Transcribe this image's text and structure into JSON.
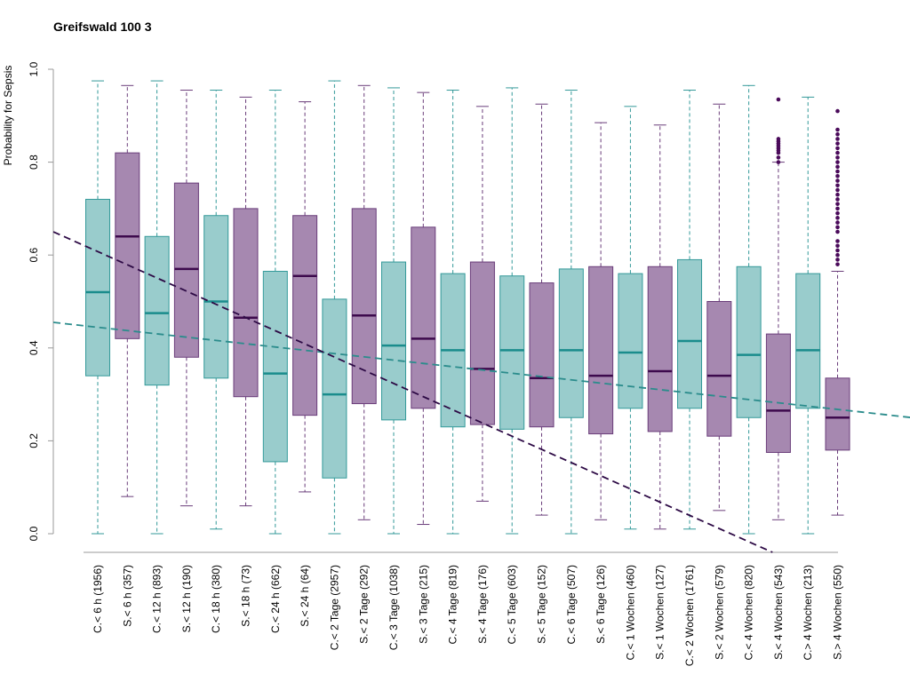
{
  "chart_data": {
    "type": "box",
    "title": "Greifswald 100 3",
    "ylabel": "Probability for Sepsis",
    "xlabel": "",
    "ylim": [
      0,
      1
    ],
    "yticks": [
      "0.0",
      "0.2",
      "0.4",
      "0.6",
      "0.8",
      "1.0"
    ],
    "yticks_values": [
      0,
      0.2,
      0.4,
      0.6,
      0.8,
      1.0
    ],
    "grid": false,
    "colors": {
      "C": {
        "fill": "#99cccc",
        "stroke": "#339999",
        "median": "#1a8c8c"
      },
      "S": {
        "fill": "#a688b0",
        "stroke": "#6a3d7a",
        "median": "#3d0a4d"
      },
      "trend_C": "#2b8c8c",
      "trend_S": "#2d0a45",
      "outlier": "#4a0a5a"
    },
    "categories": [
      "C.< 6 h (1956)",
      "S.< 6 h (357)",
      "C.< 12 h (893)",
      "S.< 12 h (190)",
      "C.< 18 h (380)",
      "S.< 18 h (73)",
      "C.< 24 h (662)",
      "S.< 24 h (64)",
      "C.< 2 Tage (2957)",
      "S.< 2 Tage (292)",
      "C.< 3 Tage (1038)",
      "S.< 3 Tage (215)",
      "C.< 4 Tage (819)",
      "S.< 4 Tage (176)",
      "C.< 5 Tage (603)",
      "S.< 5 Tage (152)",
      "C.< 6 Tage (507)",
      "S.< 6 Tage (126)",
      "C.< 1 Wochen (460)",
      "S.< 1 Wochen (127)",
      "C.< 2 Wochen (1761)",
      "S.< 2 Wochen (579)",
      "C.< 4 Wochen (820)",
      "S.< 4 Wochen (543)",
      "C.> 4 Wochen (213)",
      "S.> 4 Wochen (550)"
    ],
    "boxes": [
      {
        "group": "C",
        "whisker_low": 0.0,
        "q1": 0.34,
        "median": 0.52,
        "q3": 0.72,
        "whisker_high": 0.975
      },
      {
        "group": "S",
        "whisker_low": 0.08,
        "q1": 0.42,
        "median": 0.64,
        "q3": 0.82,
        "whisker_high": 0.965
      },
      {
        "group": "C",
        "whisker_low": 0.0,
        "q1": 0.32,
        "median": 0.475,
        "q3": 0.64,
        "whisker_high": 0.975
      },
      {
        "group": "S",
        "whisker_low": 0.06,
        "q1": 0.38,
        "median": 0.57,
        "q3": 0.755,
        "whisker_high": 0.955
      },
      {
        "group": "C",
        "whisker_low": 0.01,
        "q1": 0.335,
        "median": 0.5,
        "q3": 0.685,
        "whisker_high": 0.955
      },
      {
        "group": "S",
        "whisker_low": 0.06,
        "q1": 0.295,
        "median": 0.465,
        "q3": 0.7,
        "whisker_high": 0.94
      },
      {
        "group": "C",
        "whisker_low": 0.0,
        "q1": 0.155,
        "median": 0.345,
        "q3": 0.565,
        "whisker_high": 0.955
      },
      {
        "group": "S",
        "whisker_low": 0.09,
        "q1": 0.255,
        "median": 0.555,
        "q3": 0.685,
        "whisker_high": 0.93
      },
      {
        "group": "C",
        "whisker_low": 0.0,
        "q1": 0.12,
        "median": 0.3,
        "q3": 0.505,
        "whisker_high": 0.975
      },
      {
        "group": "S",
        "whisker_low": 0.03,
        "q1": 0.28,
        "median": 0.47,
        "q3": 0.7,
        "whisker_high": 0.965
      },
      {
        "group": "C",
        "whisker_low": 0.0,
        "q1": 0.245,
        "median": 0.405,
        "q3": 0.585,
        "whisker_high": 0.96
      },
      {
        "group": "S",
        "whisker_low": 0.02,
        "q1": 0.27,
        "median": 0.42,
        "q3": 0.66,
        "whisker_high": 0.95
      },
      {
        "group": "C",
        "whisker_low": 0.0,
        "q1": 0.23,
        "median": 0.395,
        "q3": 0.56,
        "whisker_high": 0.955
      },
      {
        "group": "S",
        "whisker_low": 0.07,
        "q1": 0.235,
        "median": 0.355,
        "q3": 0.585,
        "whisker_high": 0.92
      },
      {
        "group": "C",
        "whisker_low": 0.0,
        "q1": 0.225,
        "median": 0.395,
        "q3": 0.555,
        "whisker_high": 0.96
      },
      {
        "group": "S",
        "whisker_low": 0.04,
        "q1": 0.23,
        "median": 0.335,
        "q3": 0.54,
        "whisker_high": 0.925
      },
      {
        "group": "C",
        "whisker_low": 0.0,
        "q1": 0.25,
        "median": 0.395,
        "q3": 0.57,
        "whisker_high": 0.955
      },
      {
        "group": "S",
        "whisker_low": 0.03,
        "q1": 0.215,
        "median": 0.34,
        "q3": 0.575,
        "whisker_high": 0.885
      },
      {
        "group": "C",
        "whisker_low": 0.01,
        "q1": 0.27,
        "median": 0.39,
        "q3": 0.56,
        "whisker_high": 0.92
      },
      {
        "group": "S",
        "whisker_low": 0.01,
        "q1": 0.22,
        "median": 0.35,
        "q3": 0.575,
        "whisker_high": 0.88
      },
      {
        "group": "C",
        "whisker_low": 0.01,
        "q1": 0.27,
        "median": 0.415,
        "q3": 0.59,
        "whisker_high": 0.955
      },
      {
        "group": "S",
        "whisker_low": 0.05,
        "q1": 0.21,
        "median": 0.34,
        "q3": 0.5,
        "whisker_high": 0.925
      },
      {
        "group": "C",
        "whisker_low": 0.0,
        "q1": 0.25,
        "median": 0.385,
        "q3": 0.575,
        "whisker_high": 0.965
      },
      {
        "group": "S",
        "whisker_low": 0.03,
        "q1": 0.175,
        "median": 0.265,
        "q3": 0.43,
        "whisker_high": 0.8,
        "outliers": [
          0.935,
          0.85,
          0.845,
          0.84,
          0.835,
          0.83,
          0.825,
          0.82,
          0.81,
          0.8
        ]
      },
      {
        "group": "C",
        "whisker_low": 0.0,
        "q1": 0.27,
        "median": 0.395,
        "q3": 0.56,
        "whisker_high": 0.94
      },
      {
        "group": "S",
        "whisker_low": 0.04,
        "q1": 0.18,
        "median": 0.25,
        "q3": 0.335,
        "whisker_high": 0.565,
        "outliers": [
          0.91,
          0.87,
          0.86,
          0.85,
          0.84,
          0.83,
          0.82,
          0.81,
          0.8,
          0.79,
          0.78,
          0.77,
          0.76,
          0.75,
          0.74,
          0.73,
          0.72,
          0.71,
          0.7,
          0.69,
          0.68,
          0.67,
          0.66,
          0.65,
          0.63,
          0.62,
          0.61,
          0.6,
          0.59,
          0.58
        ]
      }
    ],
    "trend_lines": [
      {
        "group": "C",
        "from": {
          "x": 0,
          "y": 0.455
        },
        "to": {
          "x": 29,
          "y": 0.25
        }
      },
      {
        "group": "S",
        "from": {
          "x": 0,
          "y": 0.65
        },
        "to": {
          "x": 24.3,
          "y": -0.04
        }
      }
    ]
  }
}
